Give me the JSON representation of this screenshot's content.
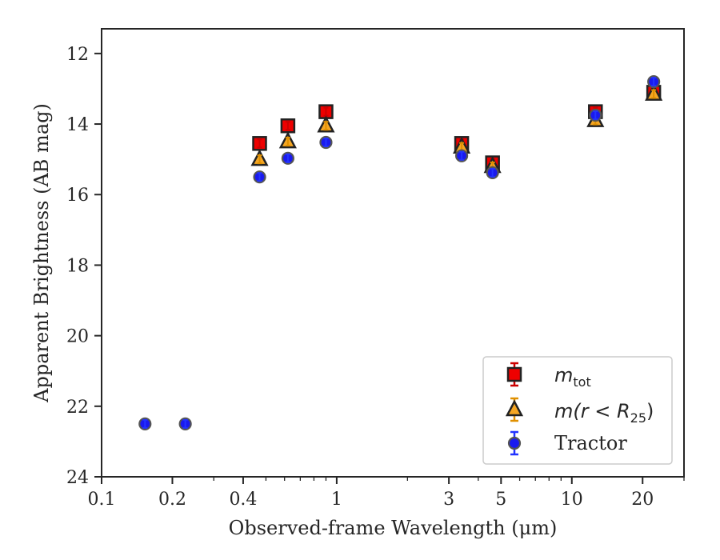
{
  "chart_data": {
    "type": "scatter",
    "title": "",
    "xlabel": "Observed-frame Wavelength (μm)",
    "ylabel": "Apparent Brightness (AB mag)",
    "xscale": "log",
    "xlim": [
      0.1,
      30
    ],
    "ylim": [
      24,
      11.3
    ],
    "y_inverted": true,
    "x_ticks": [
      {
        "value": 0.1,
        "label": "0.1"
      },
      {
        "value": 0.2,
        "label": "0.2"
      },
      {
        "value": 0.4,
        "label": "0.4"
      },
      {
        "value": 1,
        "label": "1"
      },
      {
        "value": 3,
        "label": "3"
      },
      {
        "value": 5,
        "label": "5"
      },
      {
        "value": 10,
        "label": "10"
      },
      {
        "value": 20,
        "label": "20"
      }
    ],
    "y_ticks": [
      12,
      14,
      16,
      18,
      20,
      22,
      24
    ],
    "legend_position": "lower right",
    "series": [
      {
        "name": "m_tot",
        "legend_parts": {
          "main": "m",
          "sub": "tot"
        },
        "marker": "square",
        "color": "#ee0000",
        "error_color": "#cc0000",
        "points": [
          {
            "x": 0.47,
            "y": 14.55
          },
          {
            "x": 0.62,
            "y": 14.05
          },
          {
            "x": 0.9,
            "y": 13.65
          },
          {
            "x": 3.4,
            "y": 14.55
          },
          {
            "x": 4.6,
            "y": 15.1
          },
          {
            "x": 12.6,
            "y": 13.65
          },
          {
            "x": 22.3,
            "y": 13.1
          }
        ]
      },
      {
        "name": "m(r < R_25)",
        "legend_parts": {
          "main": "m(r < R",
          "sub": "25",
          "tail": ")"
        },
        "marker": "triangle",
        "color": "#f5a623",
        "error_color": "#e09000",
        "points": [
          {
            "x": 0.47,
            "y": 15.0
          },
          {
            "x": 0.62,
            "y": 14.5
          },
          {
            "x": 0.9,
            "y": 14.05
          },
          {
            "x": 3.4,
            "y": 14.65
          },
          {
            "x": 4.6,
            "y": 15.2
          },
          {
            "x": 12.6,
            "y": 13.9
          },
          {
            "x": 22.3,
            "y": 13.15
          }
        ]
      },
      {
        "name": "Tractor",
        "marker": "circle",
        "color": "#1a1aee",
        "error_color": "#2233ff",
        "points": [
          {
            "x": 0.153,
            "y": 22.5
          },
          {
            "x": 0.227,
            "y": 22.5
          },
          {
            "x": 0.47,
            "y": 15.5
          },
          {
            "x": 0.62,
            "y": 14.97
          },
          {
            "x": 0.9,
            "y": 14.52
          },
          {
            "x": 3.4,
            "y": 14.9
          },
          {
            "x": 4.6,
            "y": 15.38
          },
          {
            "x": 12.6,
            "y": 13.75
          },
          {
            "x": 22.3,
            "y": 12.8
          }
        ]
      }
    ]
  }
}
